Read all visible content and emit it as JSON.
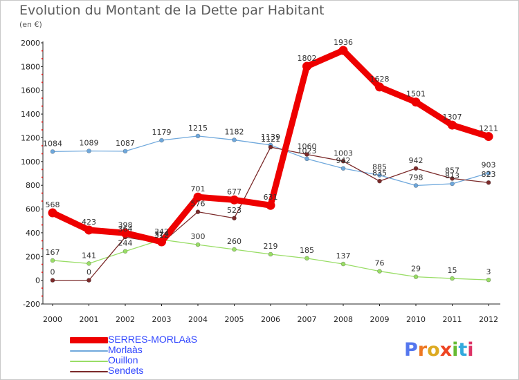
{
  "title": "Evolution du Montant de la Dette par Habitant",
  "subtitle": "(en €)",
  "logo_text": "Proxiti",
  "chart_data": {
    "type": "line",
    "categories": [
      "2000",
      "2001",
      "2002",
      "2003",
      "2004",
      "2005",
      "2006",
      "2007",
      "2008",
      "2009",
      "2010",
      "2011",
      "2012"
    ],
    "ylim": [
      -200,
      2000
    ],
    "yticks": [
      -200,
      0,
      200,
      400,
      600,
      800,
      1000,
      1200,
      1400,
      1600,
      1800,
      2000
    ],
    "grid": false,
    "legend_position": "bottom-left",
    "series": [
      {
        "name": "SERRES-MORLAàS",
        "color": "#ee0000",
        "values": [
          568,
          423,
          398,
          324,
          701,
          677,
          631,
          1802,
          1936,
          1628,
          1501,
          1307,
          1211
        ]
      },
      {
        "name": "Morlaàs",
        "color": "#6fa8dc",
        "values": [
          1084,
          1089,
          1087,
          1179,
          1215,
          1182,
          1139,
          1023,
          942,
          885,
          798,
          813,
          903
        ]
      },
      {
        "name": "Ouillon",
        "color": "#99dd66",
        "values": [
          167,
          141,
          244,
          342,
          300,
          260,
          219,
          185,
          137,
          76,
          29,
          15,
          3
        ]
      },
      {
        "name": "Sendets",
        "color": "#7b2a2a",
        "values": [
          0,
          0,
          364,
          312,
          576,
          523,
          1121,
          1060,
          1003,
          835,
          942,
          857,
          823
        ]
      }
    ]
  }
}
